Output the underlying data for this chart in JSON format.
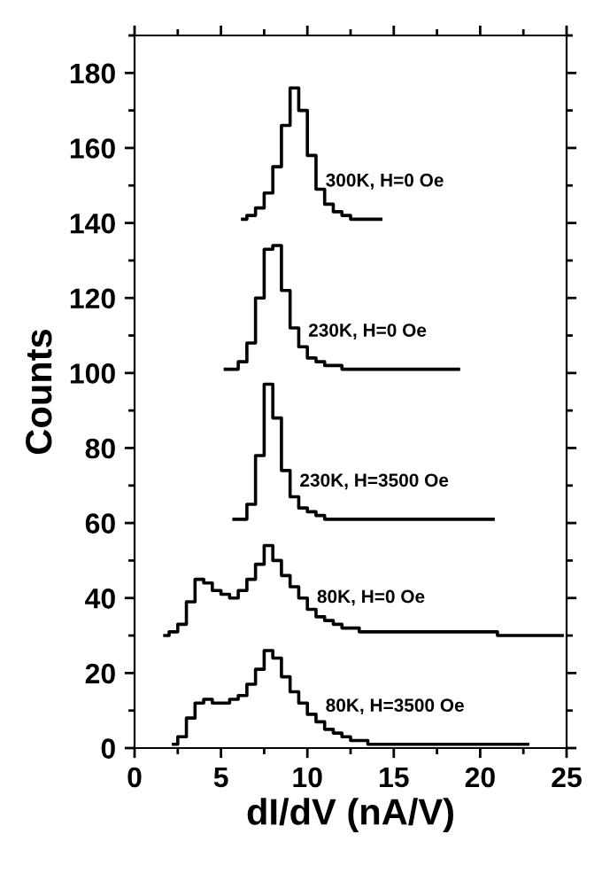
{
  "chart_data": {
    "type": "step",
    "xlabel": "dI/dV (nA/V)",
    "ylabel": "Counts",
    "xlim": [
      0,
      25
    ],
    "ylim": [
      0,
      190
    ],
    "xticks": [
      0,
      5,
      10,
      15,
      20,
      25
    ],
    "yticks": [
      0,
      20,
      40,
      60,
      80,
      100,
      120,
      140,
      160,
      180
    ],
    "series": [
      {
        "name": "300K, H=0 Oe",
        "color": "#000000",
        "x": [
          6.25,
          6.75,
          7.25,
          7.75,
          8.25,
          8.75,
          9.25,
          9.75,
          10.25,
          10.75,
          11.25,
          11.75,
          12.25,
          12.75,
          13.25,
          13.75,
          14.25
        ],
        "values": [
          141,
          142,
          144,
          148,
          155,
          166,
          176,
          170,
          158,
          149,
          145,
          143,
          142,
          141,
          141,
          141,
          141
        ]
      },
      {
        "name": "230K, H=0 Oe",
        "color": "#000000",
        "x": [
          5.25,
          5.75,
          6.25,
          6.75,
          7.25,
          7.75,
          8.25,
          8.75,
          9.25,
          9.75,
          10.25,
          10.75,
          11.25,
          11.75,
          12.25,
          12.75,
          13.25,
          13.75,
          14.25,
          14.75,
          15.25,
          15.75,
          16.25,
          16.75,
          17.25,
          17.75,
          18.25,
          18.75
        ],
        "values": [
          101,
          101,
          103,
          108,
          120,
          133,
          134,
          122,
          112,
          107,
          104,
          103,
          102,
          102,
          101,
          101,
          101,
          101,
          101,
          101,
          101,
          101,
          101,
          101,
          101,
          101,
          101,
          101
        ]
      },
      {
        "name": "230K, H=3500 Oe",
        "color": "#000000",
        "x": [
          5.75,
          6.25,
          6.75,
          7.25,
          7.75,
          8.25,
          8.75,
          9.25,
          9.75,
          10.25,
          10.75,
          11.25,
          11.75,
          12.25,
          12.75,
          13.25,
          13.75,
          14.25,
          14.75,
          15.25,
          15.75,
          16.25,
          16.75,
          17.25,
          17.75,
          18.25,
          18.75,
          19.25,
          19.75,
          20.25,
          20.75
        ],
        "values": [
          61,
          61,
          65,
          78,
          97,
          88,
          74,
          67,
          64,
          63,
          62,
          61,
          61,
          61,
          61,
          61,
          61,
          61,
          61,
          61,
          61,
          61,
          61,
          61,
          61,
          61,
          61,
          61,
          61,
          61,
          61
        ]
      },
      {
        "name": "80K, H=0 Oe",
        "color": "#000000",
        "x": [
          1.75,
          2.25,
          2.75,
          3.25,
          3.75,
          4.25,
          4.75,
          5.25,
          5.75,
          6.25,
          6.75,
          7.25,
          7.75,
          8.25,
          8.75,
          9.25,
          9.75,
          10.25,
          10.75,
          11.25,
          11.75,
          12.25,
          12.75,
          13.25,
          13.75,
          14.25,
          14.75,
          15.25,
          15.75,
          16.25,
          16.75,
          17.25,
          17.75,
          18.25,
          18.75,
          19.25,
          19.75,
          20.25,
          20.75,
          21.25,
          21.75,
          22.25,
          22.75,
          23.25,
          23.75,
          24.25,
          24.75
        ],
        "values": [
          30,
          31,
          33,
          39,
          45,
          44,
          42,
          41,
          40,
          42,
          45,
          49,
          54,
          50,
          46,
          43,
          40,
          37,
          35,
          34,
          33,
          32,
          32,
          31,
          31,
          31,
          31,
          31,
          31,
          31,
          31,
          31,
          31,
          31,
          31,
          31,
          31,
          31,
          31,
          30,
          30,
          30,
          30,
          30,
          30,
          30,
          30
        ]
      },
      {
        "name": "80K, H=3500 Oe",
        "color": "#000000",
        "x": [
          2.25,
          2.75,
          3.25,
          3.75,
          4.25,
          4.75,
          5.25,
          5.75,
          6.25,
          6.75,
          7.25,
          7.75,
          8.25,
          8.75,
          9.25,
          9.75,
          10.25,
          10.75,
          11.25,
          11.75,
          12.25,
          12.75,
          13.25,
          13.75,
          14.25,
          14.75,
          15.25,
          15.75,
          16.25,
          16.75,
          17.25,
          17.75,
          18.25,
          18.75,
          19.25,
          19.75,
          20.25,
          20.75,
          21.25,
          21.75,
          22.25,
          22.75
        ],
        "values": [
          1,
          3,
          8,
          12,
          13,
          12,
          12,
          13,
          14,
          17,
          21,
          26,
          24,
          19,
          15,
          12,
          9,
          7,
          5,
          4,
          3,
          2,
          2,
          1,
          1,
          1,
          1,
          1,
          1,
          1,
          1,
          1,
          1,
          1,
          1,
          1,
          1,
          1,
          1,
          1,
          1,
          1
        ]
      }
    ]
  }
}
